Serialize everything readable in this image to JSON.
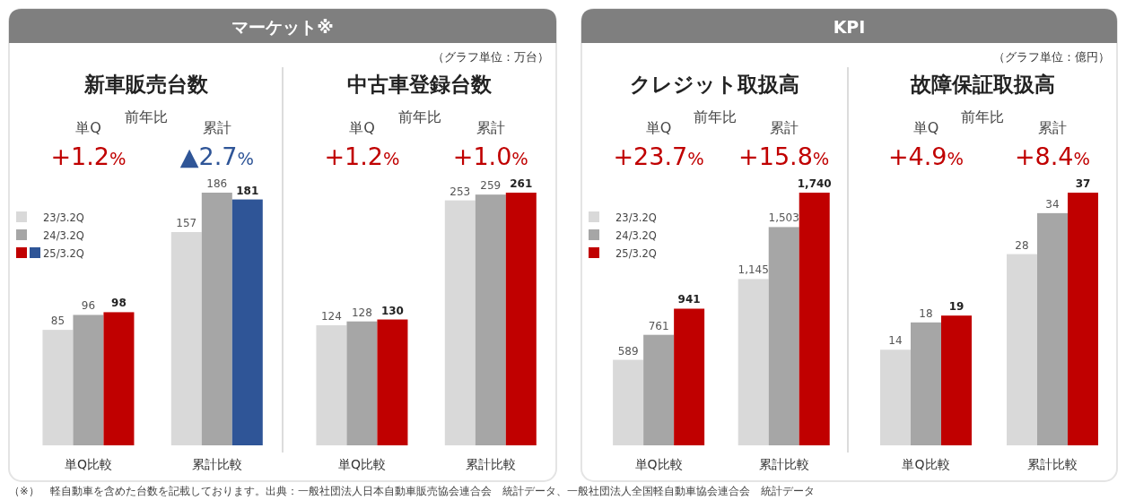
{
  "chart_data": [
    {
      "type": "bar",
      "title": "新車販売台数",
      "categories": [
        "単Q比較",
        "累計比較"
      ],
      "legend": "left",
      "series": [
        {
          "name": "23/3.2Q",
          "colors": [
            "#d9d9d9",
            "#d9d9d9"
          ],
          "values": [
            85,
            157
          ],
          "value_labels": [
            "85",
            "157"
          ]
        },
        {
          "name": "24/3.2Q",
          "colors": [
            "#a6a6a6",
            "#a6a6a6"
          ],
          "values": [
            96,
            186
          ],
          "value_labels": [
            "96",
            "186"
          ]
        },
        {
          "name": "25/3.2Q",
          "colors": [
            "#c00000",
            "#2f5597"
          ],
          "values": [
            98,
            181
          ],
          "value_labels": [
            "98",
            "181"
          ]
        }
      ],
      "annotations": [
        "単Q",
        "前年比",
        "累計",
        "+1.2%",
        "▲2.7%",
        "マーケット※",
        "（グラフ単位：万台）",
        "（※）　軽自動車を含めた台数を記載しております。出典：一般社団法人日本自動車販売協会連合会　統計データ、一般社団法人全国軽自動車協会連合会　統計データ"
      ]
    },
    {
      "type": "bar",
      "title": "中古車登録台数",
      "categories": [
        "単Q比較",
        "累計比較"
      ],
      "series": [
        {
          "colors": [
            "#d9d9d9",
            "#d9d9d9"
          ],
          "values": [
            124,
            253
          ],
          "value_labels": [
            "124",
            "253"
          ]
        },
        {
          "colors": [
            "#a6a6a6",
            "#a6a6a6"
          ],
          "values": [
            128,
            259
          ],
          "value_labels": [
            "128",
            "259"
          ]
        },
        {
          "colors": [
            "#c00000",
            "#c00000"
          ],
          "values": [
            130,
            261
          ],
          "value_labels": [
            "130",
            "261"
          ]
        }
      ],
      "annotations": [
        "単Q",
        "前年比",
        "累計",
        "+1.2%",
        "+1.0%"
      ]
    },
    {
      "type": "bar",
      "title": "クレジット取扱高",
      "categories": [
        "単Q比較",
        "累計比較"
      ],
      "legend": "left",
      "series": [
        {
          "name": "23/3.2Q",
          "colors": [
            "#d9d9d9",
            "#d9d9d9"
          ],
          "values": [
            589,
            1145
          ],
          "value_labels": [
            "589",
            "1,145"
          ]
        },
        {
          "name": "24/3.2Q",
          "colors": [
            "#a6a6a6",
            "#a6a6a6"
          ],
          "values": [
            761,
            1503
          ],
          "value_labels": [
            "761",
            "1,503"
          ]
        },
        {
          "name": "25/3.2Q",
          "colors": [
            "#c00000",
            "#c00000"
          ],
          "values": [
            941,
            1740
          ],
          "value_labels": [
            "941",
            "1,740"
          ]
        }
      ],
      "annotations": [
        "単Q",
        "前年比",
        "累計",
        "+23.7%",
        "+15.8%",
        "KPI",
        "（グラフ単位：億円）"
      ]
    },
    {
      "type": "bar",
      "title": "故障保証取扱高",
      "categories": [
        "単Q比較",
        "累計比較"
      ],
      "series": [
        {
          "colors": [
            "#d9d9d9",
            "#d9d9d9"
          ],
          "values": [
            14,
            28
          ],
          "value_labels": [
            "14",
            "28"
          ]
        },
        {
          "colors": [
            "#a6a6a6",
            "#a6a6a6"
          ],
          "values": [
            18,
            34
          ],
          "value_labels": [
            "18",
            "34"
          ]
        },
        {
          "colors": [
            "#c00000",
            "#c00000"
          ],
          "values": [
            19,
            37
          ],
          "value_labels": [
            "19",
            "37"
          ]
        }
      ],
      "annotations": [
        "単Q",
        "前年比",
        "累計",
        "+4.9%",
        "+8.4%"
      ]
    }
  ]
}
